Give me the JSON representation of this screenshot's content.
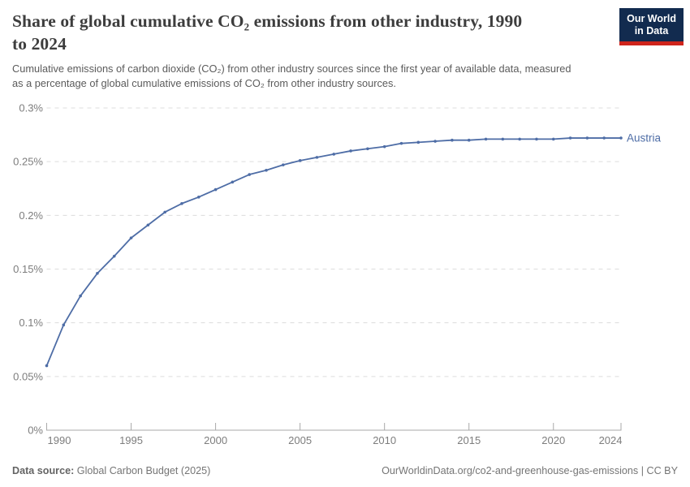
{
  "header": {
    "title_lines": [
      "Share of global cumulative CO₂ emissions from other industry, 1990",
      "to 2024"
    ],
    "subtitle_lines": [
      "Cumulative emissions of carbon dioxide (CO₂) from other industry sources since the first year of available data, measured",
      "as a percentage of global cumulative emissions of CO₂ from other industry sources."
    ],
    "logo": {
      "line1": "Our World",
      "line2": "in Data"
    }
  },
  "colors": {
    "line": "#4e6da6",
    "logo_bg": "#122b4f",
    "logo_accent": "#cf241c",
    "gridline": "#dcdcdc",
    "axis": "#a9a9a9",
    "tick_label": "#7d7d7d"
  },
  "chart_data": {
    "type": "line",
    "title": "Share of global cumulative CO₂ emissions from other industry, 1990 to 2024",
    "xlabel": "",
    "ylabel": "",
    "xlim": [
      1990,
      2024
    ],
    "ylim": [
      0,
      0.3
    ],
    "grid": "horizontal-dashed",
    "legend_position": "end-of-line-label",
    "x_ticks": [
      1990,
      1995,
      2000,
      2005,
      2010,
      2015,
      2020,
      2024
    ],
    "y_ticks": [
      0,
      0.05,
      0.1,
      0.15,
      0.2,
      0.25,
      0.3
    ],
    "y_tick_labels": [
      "0%",
      "0.05%",
      "0.1%",
      "0.15%",
      "0.2%",
      "0.25%",
      "0.3%"
    ],
    "series": [
      {
        "name": "Austria",
        "color": "#4e6da6",
        "x": [
          1990,
          1991,
          1992,
          1993,
          1994,
          1995,
          1996,
          1997,
          1998,
          1999,
          2000,
          2001,
          2002,
          2003,
          2004,
          2005,
          2006,
          2007,
          2008,
          2009,
          2010,
          2011,
          2012,
          2013,
          2014,
          2015,
          2016,
          2017,
          2018,
          2019,
          2020,
          2021,
          2022,
          2023,
          2024
        ],
        "values": [
          0.06,
          0.098,
          0.125,
          0.146,
          0.162,
          0.179,
          0.191,
          0.203,
          0.211,
          0.217,
          0.224,
          0.231,
          0.238,
          0.242,
          0.247,
          0.251,
          0.254,
          0.257,
          0.26,
          0.262,
          0.264,
          0.267,
          0.268,
          0.269,
          0.27,
          0.27,
          0.271,
          0.271,
          0.271,
          0.271,
          0.271,
          0.272,
          0.272,
          0.272,
          0.272
        ]
      }
    ]
  },
  "footer": {
    "source_label": "Data source:",
    "source_value": "Global Carbon Budget (2025)",
    "attribution": "OurWorldinData.org/co2-and-greenhouse-gas-emissions | CC BY"
  }
}
